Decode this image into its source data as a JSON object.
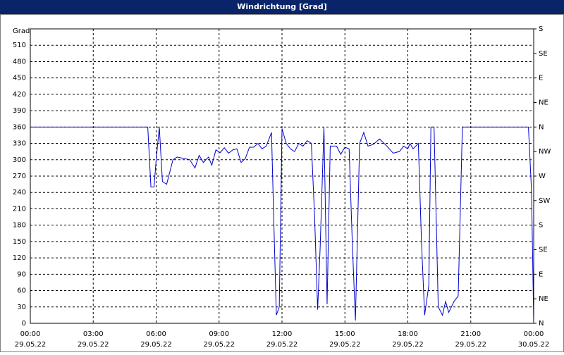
{
  "chart_data": {
    "type": "line",
    "title": "Windrichtung [Grad]",
    "y_label": "Grad",
    "xlim": [
      0,
      24
    ],
    "xticks": [
      {
        "value": 0,
        "label": "00:00"
      },
      {
        "value": 3,
        "label": "03:00"
      },
      {
        "value": 6,
        "label": "06:00"
      },
      {
        "value": 9,
        "label": "09:00"
      },
      {
        "value": 12,
        "label": "12:00"
      },
      {
        "value": 15,
        "label": "15:00"
      },
      {
        "value": 18,
        "label": "18:00"
      },
      {
        "value": 21,
        "label": "21:00"
      },
      {
        "value": 24,
        "label": "00:00"
      }
    ],
    "xtick_dates": [
      "29.05.22",
      "29.05.22",
      "29.05.22",
      "29.05.22",
      "29.05.22",
      "29.05.22",
      "29.05.22",
      "29.05.22",
      "30.05.22"
    ],
    "ylim": [
      0,
      540
    ],
    "yticks": [
      0,
      30,
      60,
      90,
      120,
      150,
      180,
      210,
      240,
      270,
      300,
      330,
      360,
      390,
      420,
      450,
      480,
      510
    ],
    "y2lim": [
      0,
      540
    ],
    "y2ticks": [
      {
        "value": 0,
        "label": "N"
      },
      {
        "value": 45,
        "label": "NE"
      },
      {
        "value": 90,
        "label": "E"
      },
      {
        "value": 135,
        "label": "SE"
      },
      {
        "value": 180,
        "label": "S"
      },
      {
        "value": 225,
        "label": "SW"
      },
      {
        "value": 270,
        "label": "W"
      },
      {
        "value": 315,
        "label": "NW"
      },
      {
        "value": 360,
        "label": "N"
      },
      {
        "value": 405,
        "label": "NE"
      },
      {
        "value": 450,
        "label": "E"
      },
      {
        "value": 495,
        "label": "SE"
      },
      {
        "value": 540,
        "label": "S"
      }
    ],
    "grid": true,
    "series": [
      {
        "color": "#0000cc",
        "x": [
          0,
          5.6,
          5.75,
          5.9,
          6.0,
          6.15,
          6.3,
          6.5,
          6.8,
          7.0,
          7.6,
          7.85,
          8.05,
          8.25,
          8.5,
          8.65,
          8.85,
          9.05,
          9.25,
          9.45,
          9.65,
          9.85,
          10.05,
          10.25,
          10.45,
          10.65,
          10.85,
          11.05,
          11.25,
          11.5,
          11.6,
          11.73,
          11.87,
          12.0,
          12.2,
          12.4,
          12.6,
          12.8,
          13.0,
          13.2,
          13.4,
          13.55,
          13.7,
          13.82,
          14.0,
          14.15,
          14.3,
          14.6,
          14.8,
          15.0,
          15.2,
          15.35,
          15.5,
          15.7,
          15.9,
          16.1,
          16.35,
          16.65,
          17.0,
          17.3,
          17.6,
          17.8,
          18.0,
          18.1,
          18.25,
          18.5,
          18.65,
          18.8,
          19.0,
          19.1,
          19.25,
          19.45,
          19.65,
          19.8,
          19.95,
          20.2,
          20.4,
          20.6,
          23.75,
          23.9,
          24
        ],
        "values": [
          360,
          360,
          250,
          250,
          300,
          360,
          260,
          255,
          300,
          305,
          300,
          285,
          308,
          295,
          305,
          290,
          318,
          313,
          322,
          312,
          318,
          320,
          295,
          302,
          323,
          323,
          330,
          320,
          325,
          350,
          200,
          15,
          30,
          357,
          330,
          320,
          315,
          330,
          325,
          335,
          330,
          200,
          25,
          140,
          360,
          35,
          325,
          325,
          310,
          323,
          320,
          150,
          5,
          330,
          350,
          325,
          328,
          338,
          325,
          312,
          315,
          325,
          320,
          330,
          320,
          330,
          150,
          15,
          70,
          360,
          360,
          30,
          15,
          40,
          20,
          40,
          50,
          360,
          360,
          240,
          0
        ]
      }
    ]
  }
}
